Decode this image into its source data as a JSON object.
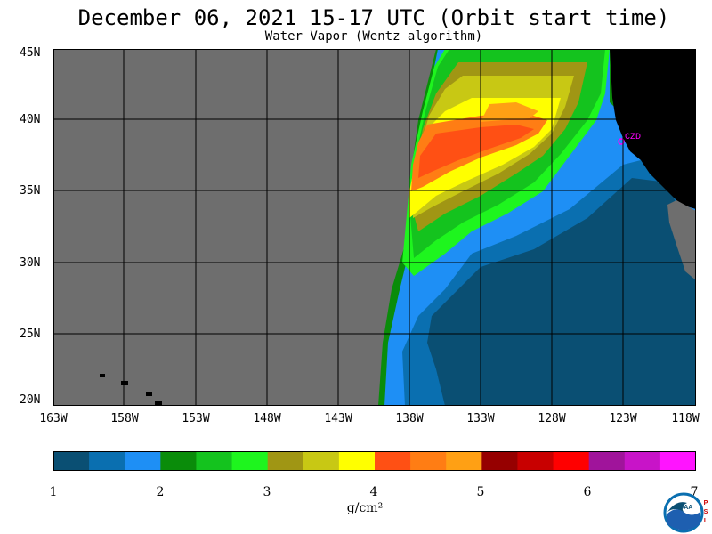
{
  "header": {
    "title": "December 06, 2021  15-17 UTC  (Orbit start time)",
    "subtitle": "Water Vapor (Wentz algorithm)"
  },
  "map": {
    "lat_labels": [
      "45N",
      "40N",
      "35N",
      "30N",
      "25N",
      "20N"
    ],
    "lon_labels": [
      "163W",
      "158W",
      "153W",
      "148W",
      "143W",
      "138W",
      "133W",
      "128W",
      "123W",
      "118W"
    ],
    "station_label": "CZD",
    "colors": {
      "nodata": "#6e6e6e",
      "land": "#000000",
      "station": "#ff00ff"
    }
  },
  "colorbar": {
    "ticks": [
      "1",
      "2",
      "3",
      "4",
      "5",
      "6",
      "7"
    ],
    "units": "g/cm²",
    "colors": [
      "#0a4f73",
      "#0a6fb0",
      "#1e8ff5",
      "#0a8c0a",
      "#14c31e",
      "#1ef51e",
      "#a09614",
      "#c8c814",
      "#ffff00",
      "#ff5014",
      "#ff7d14",
      "#ffa014",
      "#960000",
      "#c80000",
      "#ff0000",
      "#a0149b",
      "#c814c8",
      "#ff14ff"
    ]
  },
  "logo": {
    "name": "NOAA",
    "side_text": "PSL"
  }
}
